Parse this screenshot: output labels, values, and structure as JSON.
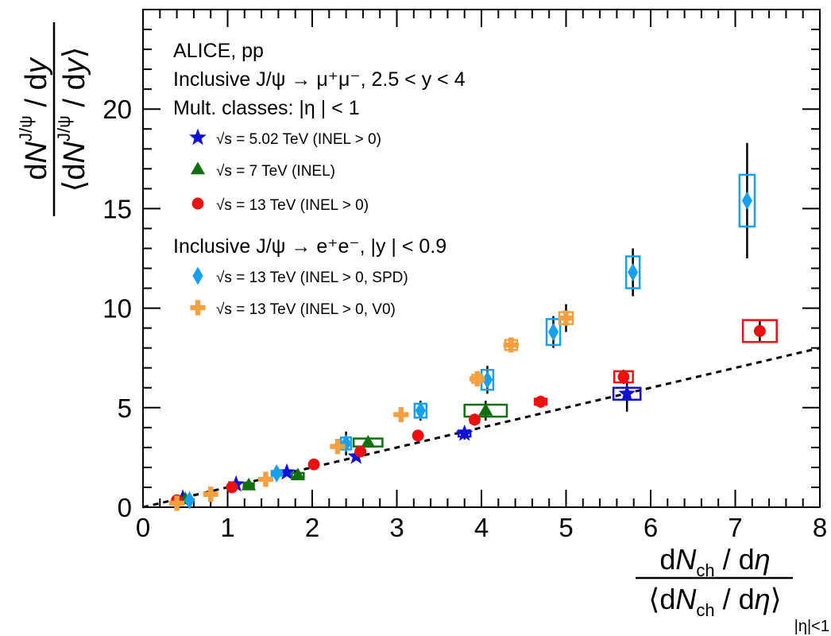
{
  "chart_data": {
    "type": "scatter",
    "xlim": [
      0,
      8
    ],
    "ylim": [
      0,
      25
    ],
    "x_ticks": [
      "0",
      "1",
      "2",
      "3",
      "4",
      "5",
      "6",
      "7",
      "8"
    ],
    "y_ticks": [
      "0",
      "5",
      "10",
      "15",
      "20"
    ],
    "ylabel": {
      "num_d": "d",
      "num_N": "N",
      "num_sup": "J/ψ",
      "num_rest": " / d",
      "num_y": "y",
      "den_open": "⟨d",
      "den_N": "N",
      "den_sup": "J/ψ",
      "den_rest": " / d",
      "den_y": "y",
      "den_close": "⟩"
    },
    "xlabel": {
      "num_d": "d",
      "num_N": "N",
      "num_sub": "ch",
      "num_rest": " / d",
      "num_eta": "η",
      "den_open": "⟨d",
      "den_N": "N",
      "den_sub": "ch",
      "den_rest": " / d",
      "den_eta": "η",
      "den_close": "⟩",
      "suffix": "|η|<1"
    },
    "legend": {
      "line1": "ALICE, pp",
      "line2": "Inclusive J/ψ → μ⁺μ⁻, 2.5 < y < 4",
      "line3": "Mult. classes: |η | < 1",
      "line4": "Inclusive J/ψ → e⁺e⁻, |y | < 0.9"
    },
    "reference_line": {
      "style": "dashed",
      "points": [
        [
          0,
          0
        ],
        [
          8,
          8
        ]
      ]
    },
    "series": [
      {
        "name": "√s = 5.02 TeV (INEL > 0)",
        "marker": "star",
        "color": "#1010d8",
        "box_color": "#1010d8",
        "points": [
          {
            "x": 0.47,
            "y": 0.45,
            "ey": 0.08,
            "bx": 0.0,
            "by": 0.0
          },
          {
            "x": 1.1,
            "y": 1.15,
            "ey": 0.1,
            "bx": 0.0,
            "by": 0.0
          },
          {
            "x": 1.7,
            "y": 1.75,
            "ey": 0.12,
            "bx": 0.0,
            "by": 0.0
          },
          {
            "x": 2.52,
            "y": 2.55,
            "ey": 0.2,
            "bx": 0.0,
            "by": 0.0
          },
          {
            "x": 3.8,
            "y": 3.7,
            "ey": 0.3,
            "bx": 0.07,
            "by": 0.15
          },
          {
            "x": 5.72,
            "y": 5.7,
            "ey": 0.9,
            "bx": 0.16,
            "by": 0.3
          }
        ]
      },
      {
        "name": "√s = 7 TeV (INEL)",
        "marker": "triangle",
        "color": "#107010",
        "box_color": "#107010",
        "points": [
          {
            "x": 0.5,
            "y": 0.4,
            "ey": 0.05,
            "bx": 0.0,
            "by": 0.0
          },
          {
            "x": 1.25,
            "y": 1.1,
            "ey": 0.1,
            "bx": 0.06,
            "by": 0.1
          },
          {
            "x": 1.83,
            "y": 1.6,
            "ey": 0.15,
            "bx": 0.07,
            "by": 0.12
          },
          {
            "x": 2.66,
            "y": 3.25,
            "ey": 0.25,
            "bx": 0.17,
            "by": 0.2
          },
          {
            "x": 4.05,
            "y": 4.85,
            "ey": 0.5,
            "bx": 0.25,
            "by": 0.3
          }
        ]
      },
      {
        "name": "√s = 13 TeV (INEL > 0)",
        "marker": "circle",
        "color": "#ee1010",
        "box_color": "#ee1010",
        "points": [
          {
            "x": 0.4,
            "y": 0.35,
            "ey": 0.05,
            "bx": 0.0,
            "by": 0.0
          },
          {
            "x": 1.05,
            "y": 1.0,
            "ey": 0.1,
            "bx": 0.0,
            "by": 0.0
          },
          {
            "x": 2.02,
            "y": 2.15,
            "ey": 0.15,
            "bx": 0.0,
            "by": 0.0
          },
          {
            "x": 2.57,
            "y": 2.8,
            "ey": 0.2,
            "bx": 0.0,
            "by": 0.0
          },
          {
            "x": 3.25,
            "y": 3.6,
            "ey": 0.25,
            "bx": 0.0,
            "by": 0.0
          },
          {
            "x": 3.92,
            "y": 4.4,
            "ey": 0.3,
            "bx": 0.05,
            "by": 0.15
          },
          {
            "x": 4.7,
            "y": 5.3,
            "ey": 0.3,
            "bx": 0.07,
            "by": 0.15
          },
          {
            "x": 5.68,
            "y": 6.55,
            "ey": 0.35,
            "bx": 0.11,
            "by": 0.28
          },
          {
            "x": 7.29,
            "y": 8.85,
            "ey": 0.5,
            "bx": 0.2,
            "by": 0.55
          }
        ]
      },
      {
        "name": "√s = 13 TeV (INEL > 0, SPD)",
        "marker": "diamond",
        "color": "#18a0f0",
        "box_color": "#18a0f0",
        "points": [
          {
            "x": 0.55,
            "y": 0.35,
            "ey": 0.05,
            "bx": 0.0,
            "by": 0.0
          },
          {
            "x": 1.58,
            "y": 1.7,
            "ey": 0.12,
            "bx": 0.06,
            "by": 0.12
          },
          {
            "x": 2.4,
            "y": 3.2,
            "ey": 0.6,
            "bx": 0.06,
            "by": 0.3
          },
          {
            "x": 3.28,
            "y": 4.85,
            "ey": 0.5,
            "bx": 0.07,
            "by": 0.35
          },
          {
            "x": 4.07,
            "y": 6.4,
            "ey": 0.7,
            "bx": 0.07,
            "by": 0.5
          },
          {
            "x": 4.85,
            "y": 8.8,
            "ey": 0.8,
            "bx": 0.08,
            "by": 0.65
          },
          {
            "x": 5.79,
            "y": 11.8,
            "ey": 1.2,
            "bx": 0.08,
            "by": 0.8
          },
          {
            "x": 7.14,
            "y": 15.4,
            "ey": 2.9,
            "bx": 0.09,
            "by": 1.3
          }
        ]
      },
      {
        "name": "√s = 13 TeV (INEL > 0, V0)",
        "marker": "cross",
        "color": "#f5a040",
        "box_color": "#f5a040",
        "points": [
          {
            "x": 0.4,
            "y": 0.2,
            "ey": 0.05,
            "bx": 0.0,
            "by": 0.0
          },
          {
            "x": 0.8,
            "y": 0.65,
            "ey": 0.06,
            "bx": 0.0,
            "by": 0.0
          },
          {
            "x": 1.45,
            "y": 1.4,
            "ey": 0.1,
            "bx": 0.0,
            "by": 0.0
          },
          {
            "x": 2.3,
            "y": 3.05,
            "ey": 0.2,
            "bx": 0.0,
            "by": 0.0
          },
          {
            "x": 3.05,
            "y": 4.65,
            "ey": 0.35,
            "bx": 0.0,
            "by": 0.0
          },
          {
            "x": 3.95,
            "y": 6.45,
            "ey": 0.3,
            "bx": 0.06,
            "by": 0.2
          },
          {
            "x": 4.35,
            "y": 8.15,
            "ey": 0.3,
            "bx": 0.07,
            "by": 0.25
          },
          {
            "x": 5.0,
            "y": 9.5,
            "ey": 0.7,
            "bx": 0.08,
            "by": 0.3
          }
        ]
      }
    ]
  }
}
